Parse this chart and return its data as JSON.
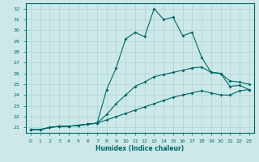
{
  "xlabel": "Humidex (Indice chaleur)",
  "bg_color": "#cce8e8",
  "grid_color": "#aad4d4",
  "line_color": "#006666",
  "xlim": [
    -0.5,
    23.5
  ],
  "ylim": [
    20.5,
    32.5
  ],
  "yticks": [
    21,
    22,
    23,
    24,
    25,
    26,
    27,
    28,
    29,
    30,
    31,
    32
  ],
  "xticks": [
    0,
    1,
    2,
    3,
    4,
    5,
    6,
    7,
    8,
    9,
    10,
    11,
    12,
    13,
    14,
    15,
    16,
    17,
    18,
    19,
    20,
    21,
    22,
    23
  ],
  "line1_x": [
    0,
    1,
    2,
    3,
    4,
    5,
    6,
    7,
    8,
    9,
    10,
    11,
    12,
    13,
    14,
    15,
    16,
    17,
    18,
    19,
    20,
    21,
    22,
    23
  ],
  "line1_y": [
    20.8,
    20.8,
    21.0,
    21.1,
    21.1,
    21.2,
    21.3,
    21.4,
    24.5,
    26.5,
    29.2,
    29.8,
    29.4,
    32.0,
    31.0,
    31.2,
    29.5,
    29.8,
    27.5,
    26.1,
    26.0,
    24.8,
    24.9,
    24.5
  ],
  "line2_x": [
    0,
    1,
    2,
    3,
    4,
    5,
    6,
    7,
    8,
    9,
    10,
    11,
    12,
    13,
    14,
    15,
    16,
    17,
    18,
    19,
    20,
    21,
    22,
    23
  ],
  "line2_y": [
    20.8,
    20.8,
    21.0,
    21.1,
    21.1,
    21.2,
    21.3,
    21.4,
    22.2,
    23.2,
    24.0,
    24.8,
    25.2,
    25.7,
    25.9,
    26.1,
    26.3,
    26.5,
    26.6,
    26.1,
    26.0,
    25.3,
    25.2,
    25.0
  ],
  "line3_x": [
    0,
    1,
    2,
    3,
    4,
    5,
    6,
    7,
    8,
    9,
    10,
    11,
    12,
    13,
    14,
    15,
    16,
    17,
    18,
    19,
    20,
    21,
    22,
    23
  ],
  "line3_y": [
    20.8,
    20.8,
    21.0,
    21.1,
    21.1,
    21.2,
    21.3,
    21.4,
    21.7,
    22.0,
    22.3,
    22.6,
    22.9,
    23.2,
    23.5,
    23.8,
    24.0,
    24.2,
    24.4,
    24.2,
    24.0,
    24.0,
    24.4,
    24.5
  ]
}
